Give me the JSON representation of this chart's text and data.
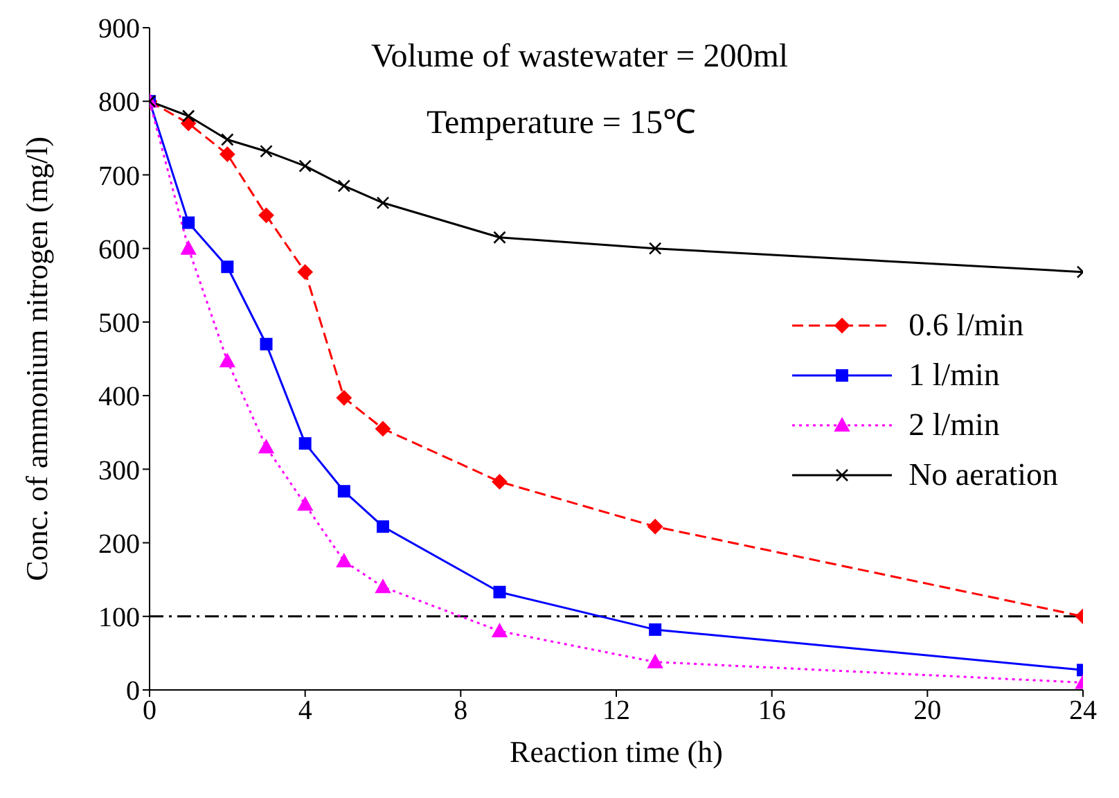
{
  "chart_data": {
    "type": "line",
    "xlabel": "Reaction time (h)",
    "ylabel": "Conc. of ammonium nitrogen (mg/l)",
    "annotations": [
      "Volume of wastewater = 200ml",
      "Temperature = 15℃"
    ],
    "xlim": [
      0,
      24
    ],
    "xticks": [
      0,
      4,
      8,
      12,
      16,
      20,
      24
    ],
    "ylim": [
      0,
      900
    ],
    "yticks": [
      0,
      100,
      200,
      300,
      400,
      500,
      600,
      700,
      800,
      900
    ],
    "grid": false,
    "legend": "right",
    "ref_lines": [
      {
        "axis": "y",
        "value": 100,
        "color": "#000000",
        "line_style": "dashdot"
      }
    ],
    "series": [
      {
        "name": "0.6 l/min",
        "color": "#ff0000",
        "marker": "diamond",
        "line_style": "dashed",
        "x": [
          0,
          1,
          2,
          3,
          4,
          5,
          6,
          9,
          13,
          24
        ],
        "values": [
          800,
          770,
          728,
          645,
          568,
          397,
          355,
          283,
          222,
          100
        ]
      },
      {
        "name": "1 l/min",
        "color": "#0000ff",
        "marker": "square",
        "line_style": "solid",
        "x": [
          0,
          1,
          2,
          3,
          4,
          5,
          6,
          9,
          13,
          24
        ],
        "values": [
          800,
          635,
          575,
          470,
          335,
          270,
          222,
          133,
          82,
          27
        ]
      },
      {
        "name": "2 l/min",
        "color": "#ff00ff",
        "marker": "triangle",
        "line_style": "dotted",
        "x": [
          0,
          1,
          2,
          3,
          4,
          5,
          6,
          9,
          13,
          24
        ],
        "values": [
          800,
          600,
          447,
          330,
          252,
          175,
          140,
          80,
          38,
          10
        ]
      },
      {
        "name": "No aeration",
        "color": "#000000",
        "marker": "cross",
        "line_style": "solid",
        "x": [
          0,
          1,
          2,
          3,
          4,
          5,
          6,
          9,
          13,
          24
        ],
        "values": [
          800,
          780,
          748,
          732,
          712,
          685,
          662,
          615,
          600,
          568
        ]
      }
    ]
  }
}
